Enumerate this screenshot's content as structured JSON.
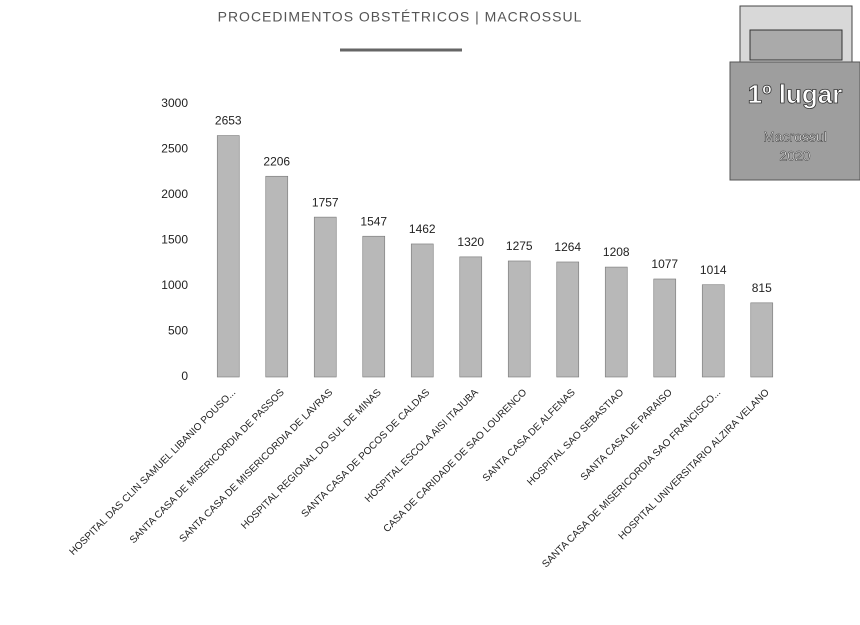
{
  "chart_data": {
    "type": "bar",
    "title": "PROCEDIMENTOS OBSTÉTRICOS | MACROSSUL",
    "categories": [
      "HOSPITAL DAS CLIN SAMUEL LIBANIO POUSO...",
      "SANTA CASA DE MISERICORDIA DE PASSOS",
      "SANTA CASA DE MISERICORDIA DE LAVRAS",
      "HOSPITAL REGIONAL DO SUL DE MINAS",
      "SANTA CASA DE POCOS DE CALDAS",
      "HOSPITAL ESCOLA AISI ITAJUBA",
      "CASA DE CARIDADE DE SAO LOURENCO",
      "SANTA CASA DE ALFENAS",
      "HOSPITAL SAO SEBASTIAO",
      "SANTA CASA DE PARAISO",
      "SANTA CASA DE MISERICORDIA SAO FRANCISCO...",
      "HOSPITAL UNIVERSITARIO ALZIRA VELANO"
    ],
    "values": [
      2653,
      2206,
      1757,
      1547,
      1462,
      1320,
      1275,
      1264,
      1208,
      1077,
      1014,
      815
    ],
    "color": "#b8b8b8",
    "ylim": [
      0,
      3000
    ],
    "yticks": [
      0,
      500,
      1000,
      1500,
      2000,
      2500,
      3000
    ],
    "grid": false,
    "badge": {
      "rank": "1º lugar",
      "region": "Macrossul",
      "year": "2020"
    }
  }
}
